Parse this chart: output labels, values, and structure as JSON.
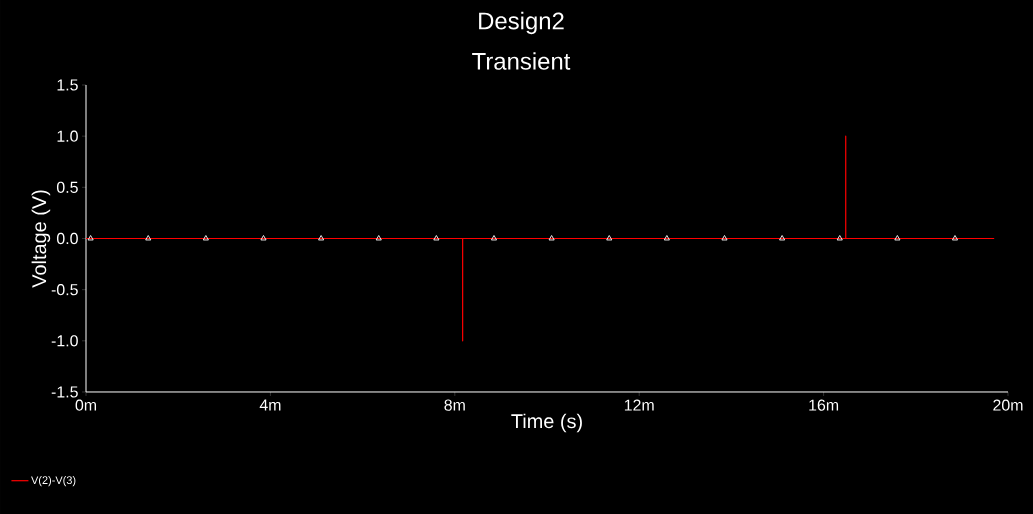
{
  "chart_data": {
    "type": "line",
    "title": "Design2",
    "subtitle": "Transient",
    "xlabel": "Time (s)",
    "ylabel": "Voltage (V)",
    "xlim": [
      0,
      20
    ],
    "ylim": [
      -1.5,
      1.5
    ],
    "xticks": [
      {
        "value": 0,
        "label": "0m"
      },
      {
        "value": 4,
        "label": "4m"
      },
      {
        "value": 8,
        "label": "8m"
      },
      {
        "value": 12,
        "label": "12m"
      },
      {
        "value": 16,
        "label": "16m"
      },
      {
        "value": 20,
        "label": "20m"
      }
    ],
    "yticks": [
      1.5,
      {
        "value": 1.0,
        "label": "1.0"
      },
      0.5,
      {
        "value": 0.0,
        "label": "0.0"
      },
      -0.5,
      {
        "value": -1.0,
        "label": "-1.0"
      },
      -1.5
    ],
    "legend": "bottom left",
    "grid": false,
    "series": [
      {
        "name": "V(2)-V(3)",
        "color": "#ff0000",
        "x": [
          0,
          8.17,
          8.17,
          8.17,
          16.48,
          16.48,
          16.48,
          19.7
        ],
        "values": [
          0,
          0,
          -1,
          0,
          0,
          1,
          0,
          0
        ]
      },
      {
        "color": "#ffffff",
        "type": "scatter",
        "marker": "triangle",
        "x": [
          0.1,
          1.35,
          2.6,
          3.85,
          5.1,
          6.35,
          7.6,
          8.85,
          10.1,
          11.35,
          12.6,
          13.85,
          15.1,
          16.35,
          17.6,
          18.85
        ],
        "values": [
          0,
          0,
          0,
          0,
          0,
          0,
          0,
          0,
          0,
          0,
          0,
          0,
          0,
          0,
          0,
          0
        ]
      }
    ]
  }
}
